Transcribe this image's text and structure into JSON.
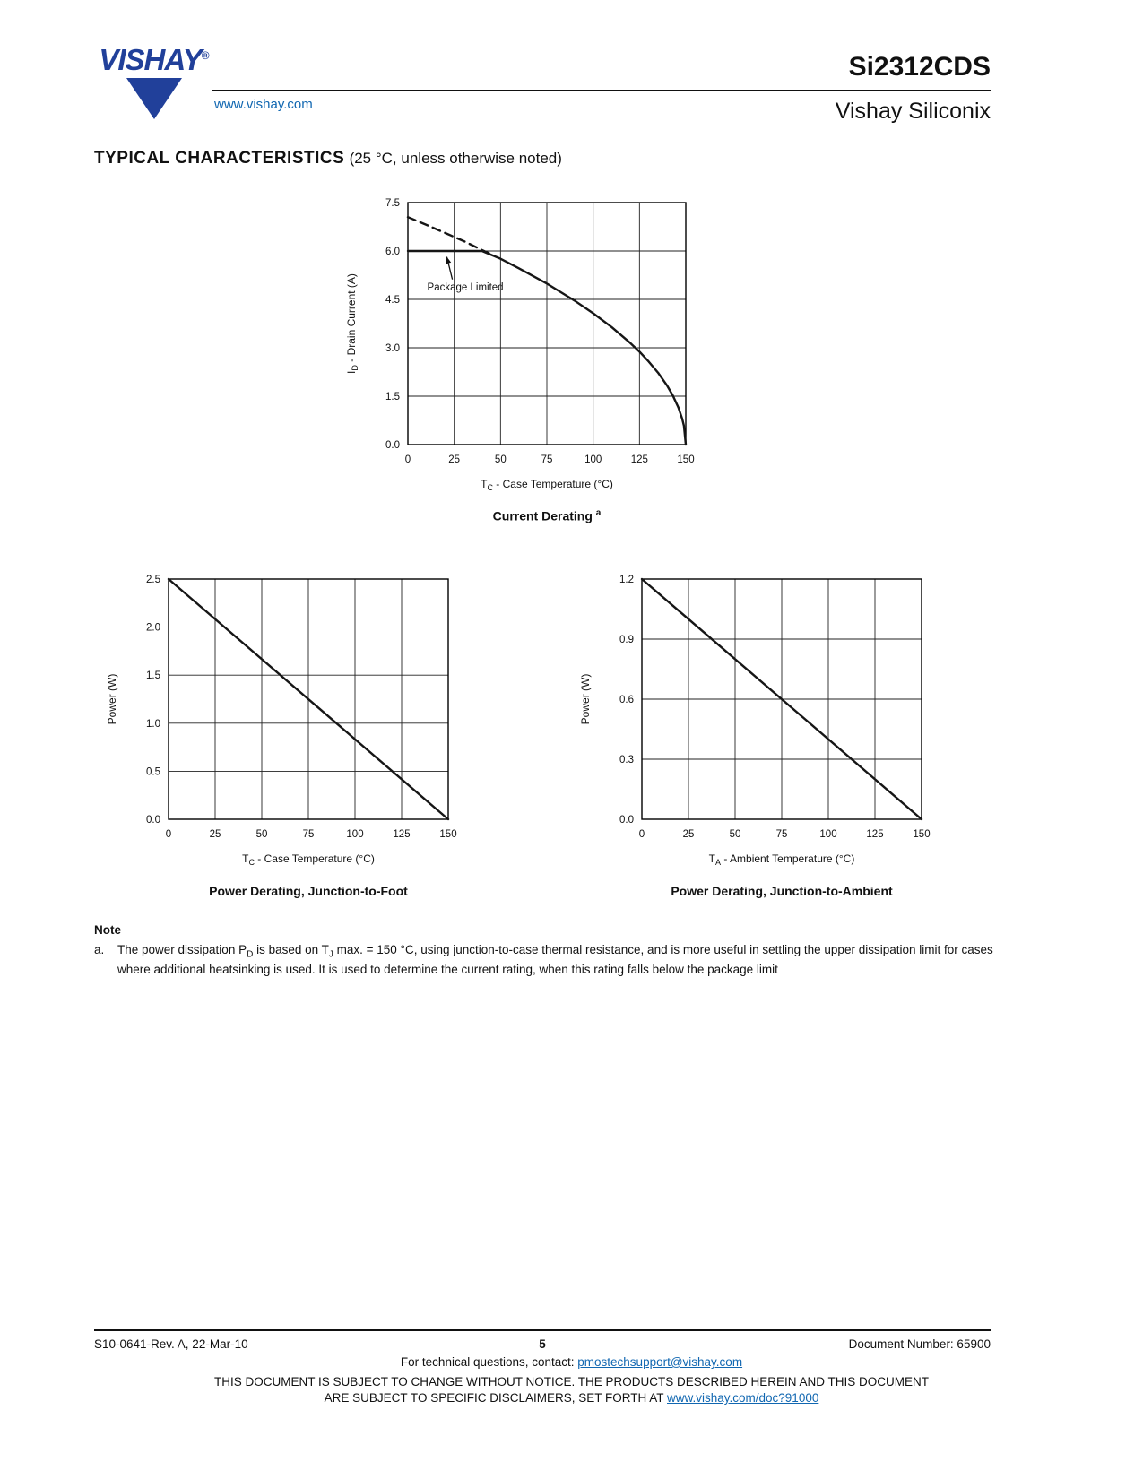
{
  "header": {
    "logo_text": "VISHAY",
    "logo_reg": "®",
    "website_link": "www.vishay.com",
    "part_number": "Si2312CDS",
    "division": "Vishay Siliconix"
  },
  "section_title": {
    "bold": "TYPICAL CHARACTERISTICS",
    "normal": "(25 °C, unless otherwise noted)"
  },
  "note": {
    "heading": "Note",
    "marker": "a.",
    "text": "The power dissipation P~D~ is based on T~J~ max. = 150 °C, using junction-to-case thermal resistance, and is more useful in settling the upper dissipation limit for cases where additional heatsinking is used. It is used to determine the current rating, when this rating falls below the package limit"
  },
  "footer": {
    "revision": "S10-0641-Rev. A, 22-Mar-10",
    "page_number": "5",
    "document_number": "Document Number: 65900",
    "contact_prefix": "For technical questions, contact: ",
    "contact_email": "pmostechsupport@vishay.com",
    "disclaimer_line1": "THIS DOCUMENT IS SUBJECT TO CHANGE WITHOUT NOTICE. THE PRODUCTS DESCRIBED HEREIN AND THIS DOCUMENT",
    "disclaimer_line2_prefix": "ARE SUBJECT TO SPECIFIC DISCLAIMERS, SET FORTH AT ",
    "disclaimer_link": "www.vishay.com/doc?91000"
  },
  "colors": {
    "brand_blue": "#21409a",
    "link_blue": "#1167b1",
    "line_black": "#161616"
  },
  "chart_data": [
    {
      "id": "current-derating",
      "type": "line",
      "title": "Current Derating ^a^",
      "xlabel": "T~C~ - Case Temperature (°C)",
      "ylabel": "I~D~ - Drain Current (A)",
      "xlim": [
        0,
        150
      ],
      "ylim": [
        0,
        7.5
      ],
      "xticks": [
        0,
        25,
        50,
        75,
        100,
        125,
        150
      ],
      "xtick_labels": [
        "0",
        "25",
        "50",
        "75",
        "100",
        "125",
        "150"
      ],
      "yticks": [
        0,
        1.5,
        3,
        4.5,
        6,
        7.5
      ],
      "ytick_labels": [
        "0.0",
        "1.5",
        "3.0",
        "4.5",
        "6.0",
        "7.5"
      ],
      "grid": true,
      "series": [
        {
          "name": "thermal-derating-dashed",
          "dash": true,
          "x": [
            0,
            10,
            20,
            30,
            40,
            45
          ],
          "y": [
            7.05,
            6.81,
            6.56,
            6.31,
            6.03,
            5.9
          ]
        },
        {
          "name": "package-limited-current",
          "dash": false,
          "x": [
            0,
            40,
            50,
            60,
            75,
            90,
            100,
            110,
            120,
            125,
            130,
            135,
            140,
            143,
            146,
            148,
            149,
            150
          ],
          "y": [
            6.0,
            6.0,
            5.76,
            5.46,
            4.99,
            4.46,
            4.07,
            3.64,
            3.15,
            2.88,
            2.57,
            2.23,
            1.82,
            1.52,
            1.15,
            0.81,
            0.58,
            0.0
          ]
        }
      ],
      "annotations": [
        {
          "text": "Package Limited",
          "tx": 31,
          "ty": 4.78,
          "ax1": 24,
          "ay1": 5.12,
          "ax2": 21,
          "ay2": 5.82
        }
      ]
    },
    {
      "id": "power-derating-junction-to-foot",
      "type": "line",
      "title": "Power Derating, Junction-to-Foot",
      "xlabel": "T~C~ - Case Temperature (°C)",
      "ylabel": "Power (W)",
      "xlim": [
        0,
        150
      ],
      "ylim": [
        0,
        2.5
      ],
      "xticks": [
        0,
        25,
        50,
        75,
        100,
        125,
        150
      ],
      "xtick_labels": [
        "0",
        "25",
        "50",
        "75",
        "100",
        "125",
        "150"
      ],
      "yticks": [
        0,
        0.5,
        1.0,
        1.5,
        2.0,
        2.5
      ],
      "ytick_labels": [
        "0.0",
        "0.5",
        "1.0",
        "1.5",
        "2.0",
        "2.5"
      ],
      "grid": true,
      "series": [
        {
          "name": "power-junction-to-foot",
          "dash": false,
          "x": [
            0,
            150
          ],
          "y": [
            2.5,
            0
          ]
        }
      ],
      "annotations": []
    },
    {
      "id": "power-derating-junction-to-ambient",
      "type": "line",
      "title": "Power Derating, Junction-to-Ambient",
      "xlabel": "T~A~ - Ambient Temperature (°C)",
      "ylabel": "Power (W)",
      "xlim": [
        0,
        150
      ],
      "ylim": [
        0,
        1.2
      ],
      "xticks": [
        0,
        25,
        50,
        75,
        100,
        125,
        150
      ],
      "xtick_labels": [
        "0",
        "25",
        "50",
        "75",
        "100",
        "125",
        "150"
      ],
      "yticks": [
        0,
        0.3,
        0.6,
        0.9,
        1.2
      ],
      "ytick_labels": [
        "0.0",
        "0.3",
        "0.6",
        "0.9",
        "1.2"
      ],
      "grid": true,
      "series": [
        {
          "name": "power-junction-to-ambient",
          "dash": false,
          "x": [
            0,
            150
          ],
          "y": [
            1.2,
            0
          ]
        }
      ],
      "annotations": []
    }
  ]
}
